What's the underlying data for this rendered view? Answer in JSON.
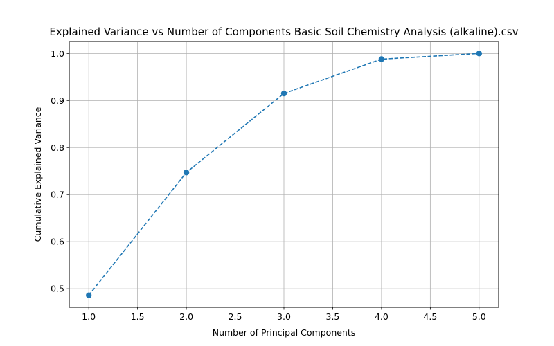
{
  "chart_data": {
    "type": "line",
    "title": "Explained Variance vs Number of Components Basic Soil Chemistry Analysis (alkaline).csv",
    "xlabel": "Number of Principal Components",
    "ylabel": "Cumulative Explained Variance",
    "x": [
      1,
      2,
      3,
      4,
      5
    ],
    "series": [
      {
        "values": [
          0.486,
          0.747,
          0.915,
          0.988,
          1.0
        ]
      }
    ],
    "xlim": [
      0.8,
      5.2
    ],
    "ylim": [
      0.4605,
      1.0255
    ],
    "xticks": [
      "1.0",
      "1.5",
      "2.0",
      "2.5",
      "3.0",
      "3.5",
      "4.0",
      "4.5",
      "5.0"
    ],
    "yticks": [
      "0.5",
      "0.6",
      "0.7",
      "0.8",
      "0.9",
      "1.0"
    ],
    "grid": true,
    "line_style": "dashed",
    "marker": "circle",
    "color": "#1f77b4"
  }
}
